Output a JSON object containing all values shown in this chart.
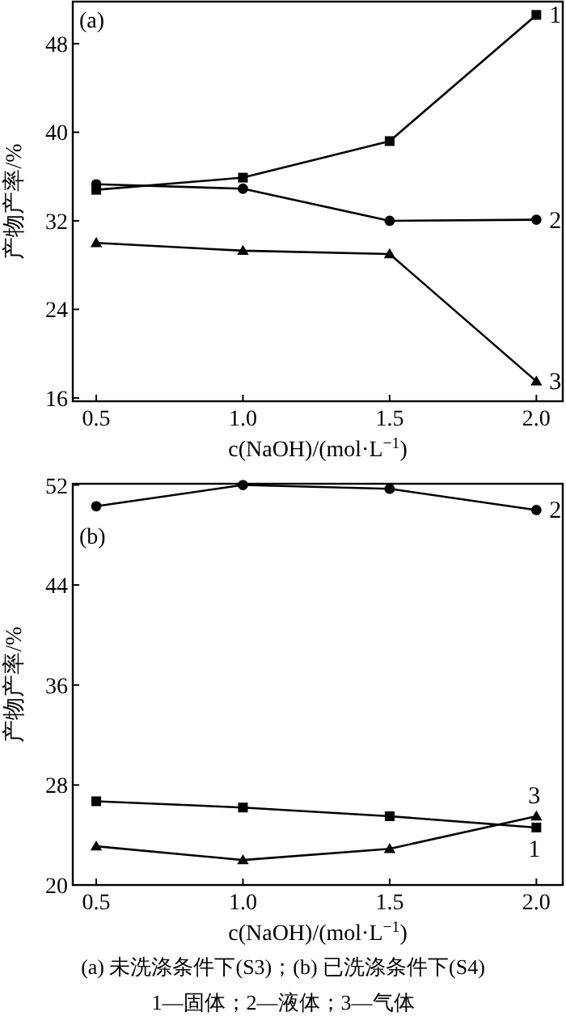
{
  "chart_data": [
    {
      "type": "line",
      "annotations": [
        "(a)"
      ],
      "ylabel": "产物产率/%",
      "xlabel": "c(NaOH)/(mol·L$^{−1}$)",
      "x": [
        0.5,
        1.0,
        1.5,
        2.0
      ],
      "xlim": [
        0.42,
        2.09
      ],
      "xticks": [
        {
          "value": 0.5,
          "label": "0.5"
        },
        {
          "value": 1.0,
          "label": "1.0"
        },
        {
          "value": 1.5,
          "label": "1.5"
        },
        {
          "value": 2.0,
          "label": "2.0"
        }
      ],
      "ylim": [
        15.7,
        51.8
      ],
      "yticks": [
        16,
        24,
        32,
        40,
        48
      ],
      "grid": false,
      "line_style": "solid",
      "series": [
        {
          "name": "1",
          "color": "#000000",
          "marker": "square",
          "values": [
            34.8,
            35.9,
            39.2,
            50.6
          ]
        },
        {
          "name": "2",
          "color": "#000000",
          "marker": "circle",
          "values": [
            35.3,
            34.9,
            32.0,
            32.1
          ]
        },
        {
          "name": "3",
          "color": "#000000",
          "marker": "triangle",
          "values": [
            30.0,
            29.3,
            29.0,
            17.5
          ]
        }
      ]
    },
    {
      "type": "line",
      "annotations": [
        "(b)",
        "(a) 未洗涤条件下(S3)；(b) 已洗涤条件下(S4)",
        "1—固体；2—液体；3—气体"
      ],
      "ylabel": "产物产率/%",
      "xlabel": "c(NaOH)/(mol·L$^{−1}$)",
      "x": [
        0.5,
        1.0,
        1.5,
        2.0
      ],
      "xlim": [
        0.42,
        2.09
      ],
      "xticks": [
        {
          "value": 0.5,
          "label": "0.5"
        },
        {
          "value": 1.0,
          "label": "1.0"
        },
        {
          "value": 1.5,
          "label": "1.5"
        },
        {
          "value": 2.0,
          "label": "2.0"
        }
      ],
      "ylim": [
        20,
        52.1
      ],
      "yticks": [
        20,
        28,
        36,
        44,
        52
      ],
      "grid": false,
      "line_style": "solid",
      "series": [
        {
          "name": "1",
          "color": "#000000",
          "marker": "square",
          "values": [
            26.7,
            26.2,
            25.5,
            24.6
          ]
        },
        {
          "name": "2",
          "color": "#000000",
          "marker": "circle",
          "values": [
            50.3,
            52.0,
            51.7,
            50.0
          ]
        },
        {
          "name": "3",
          "color": "#000000",
          "marker": "triangle",
          "values": [
            23.1,
            22.0,
            22.9,
            25.5
          ]
        }
      ]
    }
  ]
}
